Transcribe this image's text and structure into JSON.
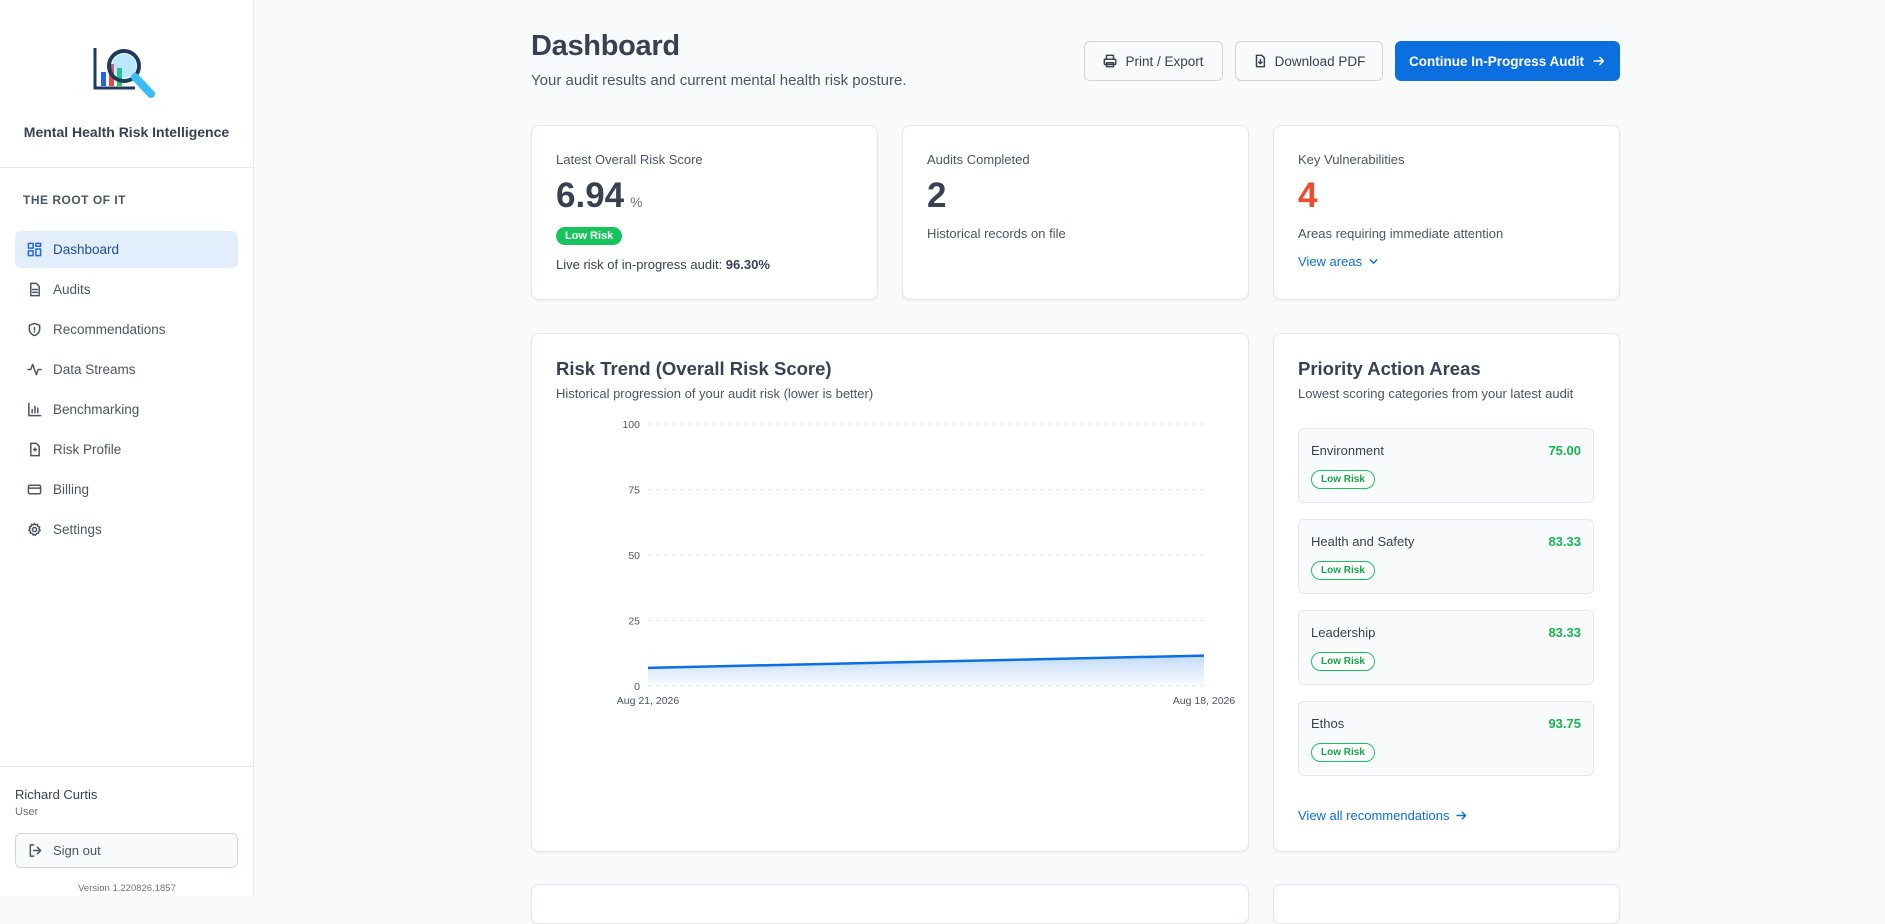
{
  "app": {
    "name": "Mental Health Risk Intelligence",
    "org": "THE ROOT OF IT",
    "version": "Version 1.220826.1857"
  },
  "nav": [
    {
      "label": "Dashboard",
      "icon": "grid-icon",
      "active": true
    },
    {
      "label": "Audits",
      "icon": "document-icon"
    },
    {
      "label": "Recommendations",
      "icon": "shield-icon"
    },
    {
      "label": "Data Streams",
      "icon": "activity-icon"
    },
    {
      "label": "Benchmarking",
      "icon": "bar-chart-icon"
    },
    {
      "label": "Risk Profile",
      "icon": "file-alert-icon"
    },
    {
      "label": "Billing",
      "icon": "credit-card-icon"
    },
    {
      "label": "Settings",
      "icon": "gear-icon"
    }
  ],
  "user": {
    "name": "Richard Curtis",
    "role": "User",
    "signout": "Sign out"
  },
  "header": {
    "title": "Dashboard",
    "subtitle": "Your audit results and current mental health risk posture.",
    "print_label": "Print / Export",
    "pdf_label": "Download PDF",
    "continue_label": "Continue In-Progress Audit"
  },
  "stats": {
    "risk": {
      "label": "Latest Overall Risk Score",
      "value": "6.94",
      "unit": "%",
      "badge": "Low Risk",
      "live_prefix": "Live risk of in-progress audit: ",
      "live_value": "96.30%"
    },
    "audits": {
      "label": "Audits Completed",
      "value": "2",
      "desc": "Historical records on file"
    },
    "vuln": {
      "label": "Key Vulnerabilities",
      "value": "4",
      "desc": "Areas requiring immediate attention",
      "link": "View areas"
    }
  },
  "trend": {
    "title": "Risk Trend (Overall Risk Score)",
    "subtitle": "Historical progression of your audit risk (lower is better)"
  },
  "chart_data": {
    "type": "area",
    "title": "Risk Trend (Overall Risk Score)",
    "x": [
      "Aug 21, 2026",
      "Aug 18, 2026"
    ],
    "series": [
      {
        "values": [
          6.94,
          11.6
        ]
      }
    ],
    "ylim": [
      0,
      100
    ],
    "yticks": [
      0,
      25,
      50,
      75,
      100
    ],
    "grid": true,
    "color": "#0b6fe0"
  },
  "priority": {
    "title": "Priority Action Areas",
    "subtitle": "Lowest scoring categories from your latest audit",
    "items": [
      {
        "name": "Environment",
        "score": "75.00",
        "badge": "Low Risk"
      },
      {
        "name": "Health and Safety",
        "score": "83.33",
        "badge": "Low Risk"
      },
      {
        "name": "Leadership",
        "score": "83.33",
        "badge": "Low Risk"
      },
      {
        "name": "Ethos",
        "score": "93.75",
        "badge": "Low Risk"
      }
    ],
    "link": "View all recommendations"
  },
  "colors": {
    "accent": "#0b6fe0",
    "success": "#16c45b",
    "danger": "#ef4b2f"
  }
}
